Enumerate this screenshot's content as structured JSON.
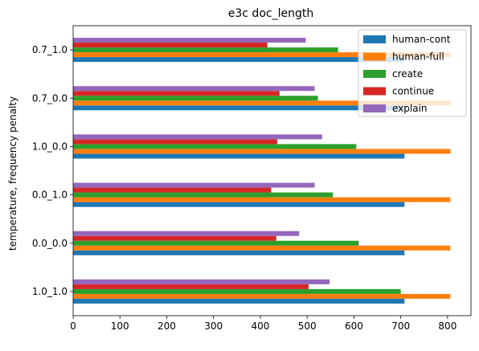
{
  "chart_data": {
    "type": "bar",
    "orientation": "horizontal",
    "title": "e3c doc_length",
    "xlabel": "",
    "ylabel": "temperature, frequency penalty",
    "xlim": [
      0,
      850
    ],
    "xticks": [
      0,
      100,
      200,
      300,
      400,
      500,
      600,
      700,
      800
    ],
    "grid": false,
    "legend_position": "top-right",
    "categories": [
      "1.0_1.0",
      "0.0_0.0",
      "0.0_1.0",
      "1.0_0.0",
      "0.7_0.0",
      "0.7_1.0"
    ],
    "series": [
      {
        "name": "human-cont",
        "color": "#1f77b4",
        "values": [
          708,
          708,
          708,
          708,
          708,
          708
        ]
      },
      {
        "name": "human-full",
        "color": "#ff7f0e",
        "values": [
          806,
          806,
          806,
          806,
          806,
          806
        ]
      },
      {
        "name": "create",
        "color": "#2ca02c",
        "values": [
          700,
          610,
          555,
          605,
          523,
          566
        ]
      },
      {
        "name": "continue",
        "color": "#d62728",
        "values": [
          503,
          434,
          423,
          436,
          441,
          415
        ]
      },
      {
        "name": "explain",
        "color": "#9467bd",
        "values": [
          548,
          483,
          516,
          532,
          516,
          497
        ]
      }
    ]
  }
}
